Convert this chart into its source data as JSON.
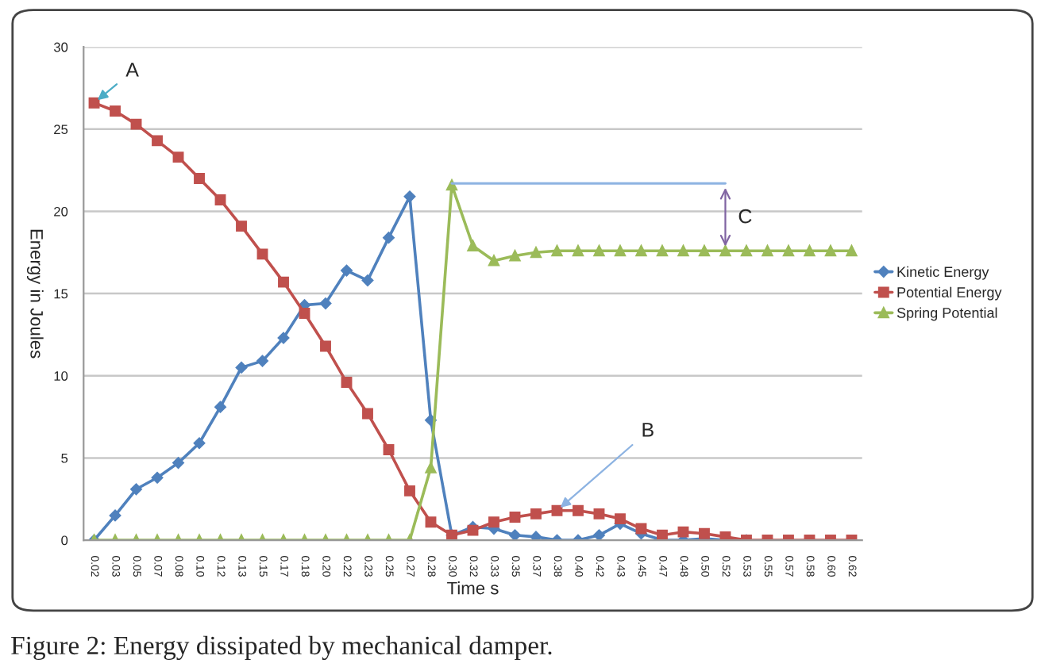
{
  "chart_data": {
    "type": "line",
    "xlabel": "Time s",
    "ylabel": "Energy in Joules",
    "categories": [
      "0.02",
      "0.03",
      "0.05",
      "0.07",
      "0.08",
      "0.10",
      "0.12",
      "0.13",
      "0.15",
      "0.17",
      "0.18",
      "0.20",
      "0.22",
      "0.23",
      "0.25",
      "0.27",
      "0.28",
      "0.30",
      "0.32",
      "0.33",
      "0.35",
      "0.37",
      "0.38",
      "0.40",
      "0.42",
      "0.43",
      "0.45",
      "0.47",
      "0.48",
      "0.50",
      "0.52",
      "0.53",
      "0.55",
      "0.57",
      "0.58",
      "0.60",
      "0.62"
    ],
    "series": [
      {
        "name": "Kinetic Energy",
        "color": "#4f81bd",
        "marker": "diamond",
        "values": [
          0,
          1.5,
          3.1,
          3.8,
          4.7,
          5.9,
          8.1,
          10.5,
          10.9,
          12.3,
          14.3,
          14.4,
          16.4,
          15.8,
          18.4,
          20.9,
          7.3,
          0.3,
          0.8,
          0.7,
          0.3,
          0.2,
          0,
          0,
          0.3,
          1.0,
          0.4,
          0,
          0,
          0.1,
          0,
          0,
          null,
          null,
          null,
          null,
          null
        ]
      },
      {
        "name": "Potential Energy",
        "color": "#c0504d",
        "marker": "square",
        "values": [
          26.6,
          26.1,
          25.3,
          24.3,
          23.3,
          22.0,
          20.7,
          19.1,
          17.4,
          15.7,
          13.8,
          11.8,
          9.6,
          7.7,
          5.5,
          3.0,
          1.1,
          0.3,
          0.6,
          1.1,
          1.4,
          1.6,
          1.8,
          1.8,
          1.6,
          1.3,
          0.7,
          0.3,
          0.5,
          0.4,
          0.2,
          0,
          0,
          0,
          0,
          0,
          0
        ]
      },
      {
        "name": "Spring Potential",
        "color": "#9bbb59",
        "marker": "triangle",
        "values": [
          0,
          0,
          0,
          0,
          0,
          0,
          0,
          0,
          0,
          0,
          0,
          0,
          0,
          0,
          0,
          0,
          4.4,
          21.6,
          17.9,
          17.0,
          17.3,
          17.5,
          17.6,
          17.6,
          17.6,
          17.6,
          17.6,
          17.6,
          17.6,
          17.6,
          17.6,
          17.6,
          17.6,
          17.6,
          17.6,
          17.6,
          17.6
        ]
      }
    ],
    "ylim": [
      0,
      30
    ],
    "yticks": [
      0,
      5,
      10,
      15,
      20,
      25,
      30
    ],
    "grid": "y",
    "legend": "right",
    "line_style": "solid",
    "annotations": [
      {
        "text": "A",
        "x": "0.02",
        "y": 26.6
      },
      {
        "text": "B",
        "x": "0.38",
        "y": 1.8
      },
      "C",
      "Figure 2: Energy dissipated by mechanical damper."
    ]
  }
}
